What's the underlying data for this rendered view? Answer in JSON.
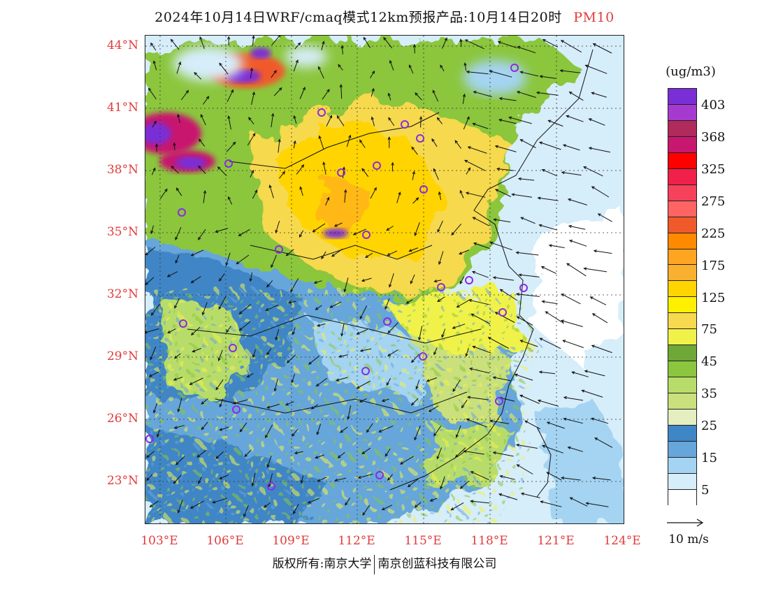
{
  "title": {
    "main": "2024年10月14日WRF/cmaq模式12km预报产品:10月14日20时",
    "pollutant": "PM10"
  },
  "axes": {
    "lat_ticks": [
      "44°N",
      "41°N",
      "38°N",
      "35°N",
      "32°N",
      "29°N",
      "26°N",
      "23°N"
    ],
    "lon_ticks": [
      "103°E",
      "106°E",
      "109°E",
      "112°E",
      "115°E",
      "118°E",
      "121°E",
      "124°E"
    ]
  },
  "legend": {
    "unit": "(ug/m3)",
    "labels": [
      "403",
      "368",
      "325",
      "275",
      "225",
      "175",
      "125",
      "75",
      "45",
      "35",
      "25",
      "15",
      "5"
    ],
    "colors": [
      "#7a2fd6",
      "#a63ad0",
      "#b02a5c",
      "#c8176e",
      "#ff0000",
      "#f0204a",
      "#f5415a",
      "#ff6464",
      "#f05a2a",
      "#ff8a00",
      "#ffa522",
      "#f8b02e",
      "#ffd400",
      "#fff000",
      "#f6d94e",
      "#f0f24a",
      "#6ea836",
      "#8bc63e",
      "#b8dc6a",
      "#c9e07c",
      "#e4eec0",
      "#3f86c6",
      "#66a6da",
      "#a4d4f2",
      "#d6edfa",
      "#ffffff"
    ]
  },
  "wind_scale": {
    "label": "10 m/s"
  },
  "copyright": {
    "left": "版权所有:南京大学",
    "right": "南京创蓝科技有限公司"
  }
}
